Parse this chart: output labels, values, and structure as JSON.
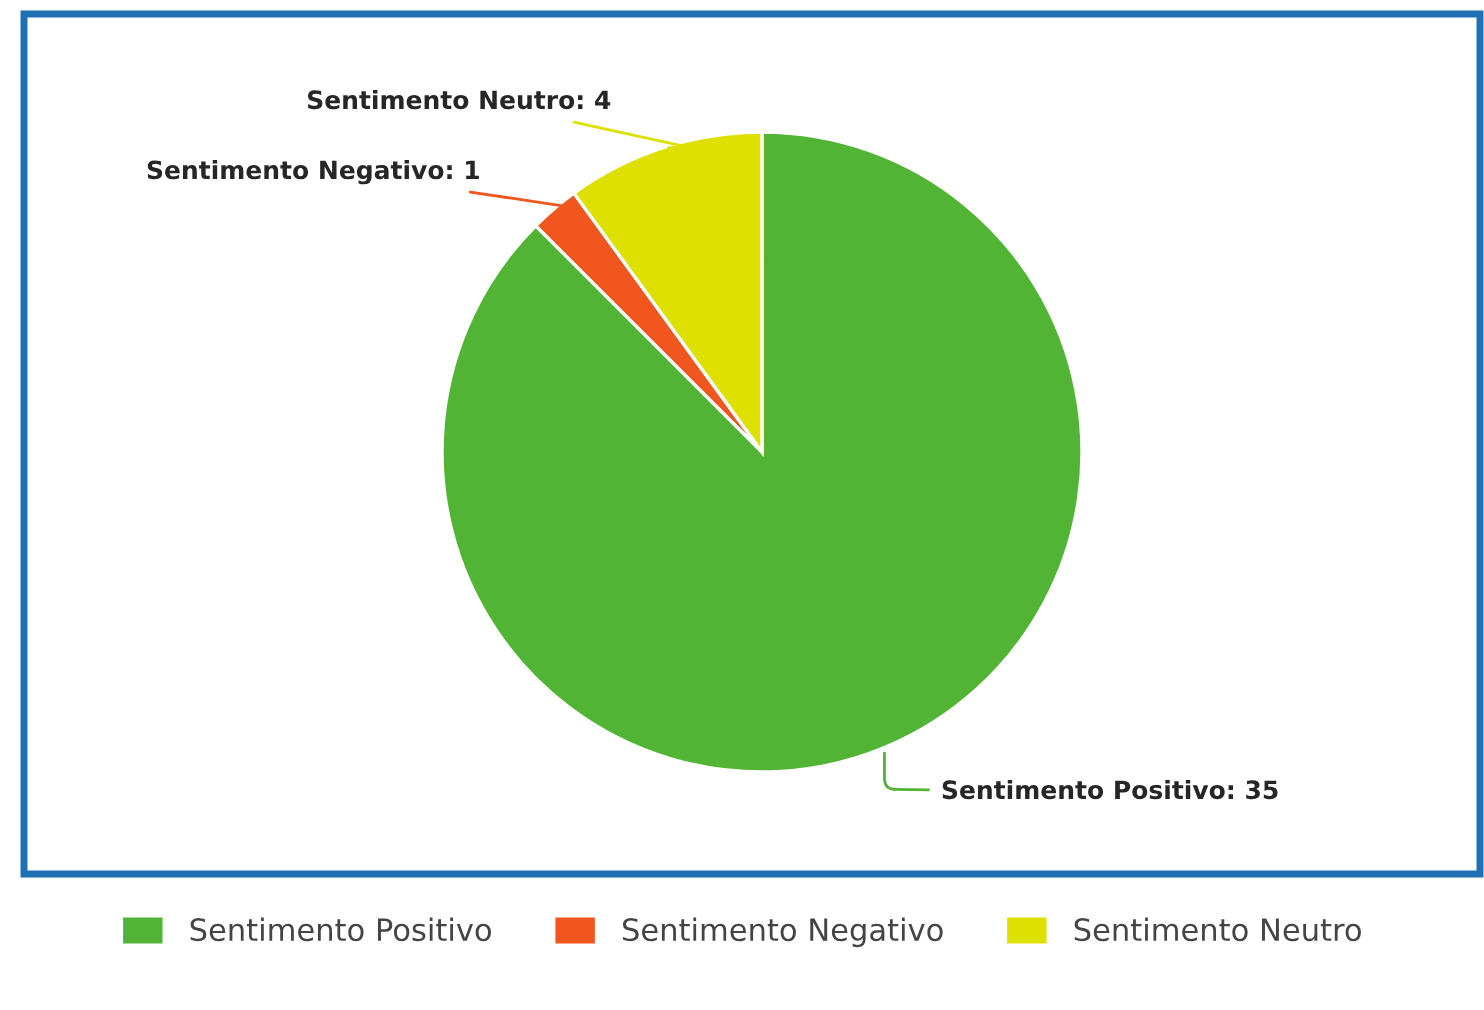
{
  "chart_data": {
    "type": "pie",
    "categories": [
      "Sentimento Positivo",
      "Sentimento Negativo",
      "Sentimento Neutro"
    ],
    "values": [
      35,
      1,
      4
    ],
    "colors": [
      "#52b435",
      "#f0561d",
      "#dde000"
    ],
    "value_labels": [
      "Sentimento Positivo: 35",
      "Sentimento Negativo: 1",
      "Sentimento Neutro: 4"
    ],
    "legend": "bottom"
  }
}
